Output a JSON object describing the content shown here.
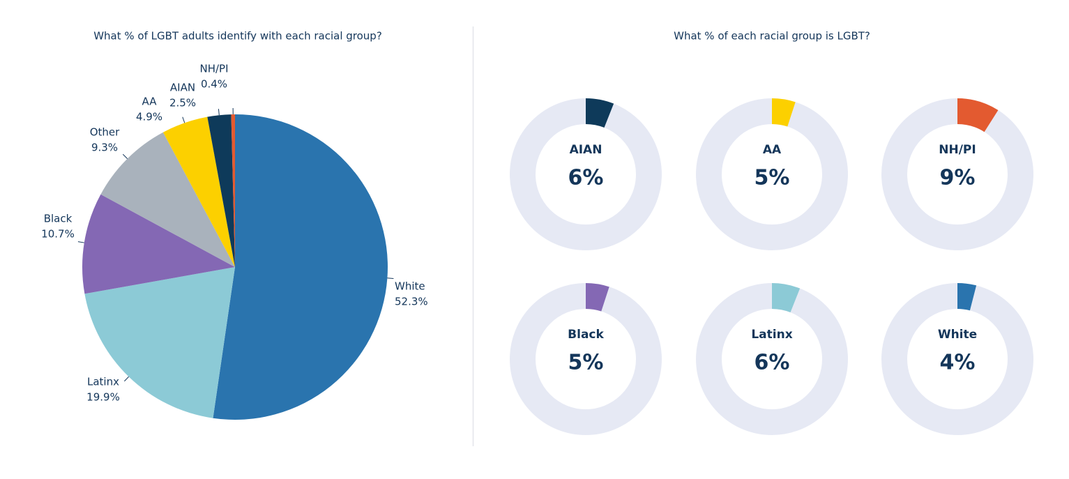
{
  "chart_data": [
    {
      "type": "pie",
      "title": "What % of LGBT adults identify with each racial group?",
      "categories": [
        "White",
        "Latinx",
        "Black",
        "Other",
        "AA",
        "AIAN",
        "NH/PI"
      ],
      "values": [
        52.3,
        19.9,
        10.7,
        9.3,
        4.9,
        2.5,
        0.4
      ],
      "value_labels": [
        "52.3%",
        "19.9%",
        "10.7%",
        "9.3%",
        "4.9%",
        "2.5%",
        "0.4%"
      ],
      "colors": [
        "#2a74ae",
        "#8ccad6",
        "#8468b4",
        "#a9b2bc",
        "#fcd000",
        "#0e3a5a",
        "#e35a30"
      ]
    },
    {
      "type": "donut",
      "title": "What % of each racial group is LGBT?",
      "categories": [
        "AIAN",
        "AA",
        "NH/PI",
        "Black",
        "Latinx",
        "White"
      ],
      "values": [
        6,
        5,
        9,
        5,
        6,
        4
      ],
      "value_labels": [
        "6%",
        "5%",
        "9%",
        "5%",
        "6%",
        "4%"
      ],
      "colors": [
        "#0e3a5a",
        "#fcd000",
        "#e35a30",
        "#8468b4",
        "#8ccad6",
        "#2a74ae"
      ],
      "track_color": "#e6e9f4",
      "ylim": [
        0,
        100
      ]
    }
  ]
}
